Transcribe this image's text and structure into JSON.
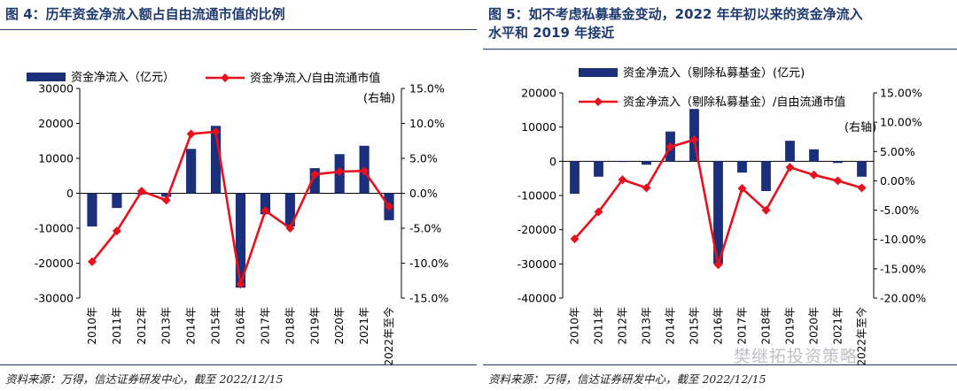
{
  "chart_data": [
    {
      "type": "bar+line",
      "title": "图 4：历年资金净流入额占自由流通市值的比例",
      "categories": [
        "2010年",
        "2011年",
        "2012年",
        "2013年",
        "2014年",
        "2015年",
        "2016年",
        "2017年",
        "2018年",
        "2019年",
        "2020年",
        "2021年",
        "2022年至今"
      ],
      "series": [
        {
          "name": "资金净流入（亿元）",
          "kind": "bar",
          "axis": "left",
          "color": "#1b2f7a",
          "values": [
            -9500,
            -4200,
            -300,
            -1000,
            12700,
            19300,
            -27000,
            -6000,
            -9500,
            7200,
            11200,
            13600,
            -7700
          ]
        },
        {
          "name": "资金净流入/自由流通市值",
          "legend_note": "(右轴)",
          "kind": "line",
          "axis": "right",
          "color": "#e8101c",
          "values": [
            -9.8,
            -5.4,
            0.3,
            -1.0,
            8.5,
            8.8,
            -13.0,
            -2.5,
            -5.0,
            2.7,
            3.1,
            3.2,
            -1.9
          ]
        }
      ],
      "left_axis": {
        "min": -30000,
        "max": 30000,
        "ticks": [
          "30000",
          "20000",
          "10000",
          "0",
          "-10000",
          "-20000",
          "-30000"
        ]
      },
      "right_axis": {
        "min": -15,
        "max": 15,
        "ticks": [
          "15.0%",
          "10.0%",
          "5.0%",
          "0.0%",
          "-5.0%",
          "-10.0%",
          "-15.0%"
        ]
      },
      "source": "资料来源：万得，信达证券研发中心，截至 2022/12/15"
    },
    {
      "type": "bar+line",
      "title": "图 5：如不考虑私募基金变动，2022 年年初以来的资金净流入\n水平和 2019 年接近",
      "categories": [
        "2010年",
        "2011年",
        "2012年",
        "2013年",
        "2014年",
        "2015年",
        "2016年",
        "2017年",
        "2018年",
        "2019年",
        "2020年",
        "2021年",
        "2022年至今"
      ],
      "series": [
        {
          "name": "资金净流入（剔除私募基金）(亿元)",
          "kind": "bar",
          "axis": "left",
          "color": "#1b2f7a",
          "values": [
            -9500,
            -4500,
            0,
            -1000,
            8700,
            15300,
            -30000,
            -3300,
            -8700,
            6000,
            3500,
            -500,
            -4500
          ]
        },
        {
          "name": "资金净流入（剔除私募基金）/自由流通市值",
          "legend_note": "(右轴)",
          "kind": "line",
          "axis": "right",
          "color": "#e8101c",
          "values": [
            -9.9,
            -5.3,
            0.2,
            -1.2,
            5.8,
            7.0,
            -14.3,
            -1.3,
            -5.0,
            2.3,
            1.0,
            0.0,
            -1.2
          ]
        }
      ],
      "left_axis": {
        "min": -40000,
        "max": 20000,
        "ticks": [
          "20000",
          "10000",
          "0",
          "-10000",
          "-20000",
          "-30000",
          "-40000"
        ]
      },
      "right_axis": {
        "min": -20,
        "max": 15,
        "ticks": [
          "15.00%",
          "10.00%",
          "5.00%",
          "0.00%",
          "-5.00%",
          "-10.00%",
          "-15.00%",
          "-20.00%"
        ]
      },
      "source": "资料来源：万得，信达证券研发中心，截至 2022/12/15"
    }
  ],
  "watermark": "樊继拓投资策略"
}
